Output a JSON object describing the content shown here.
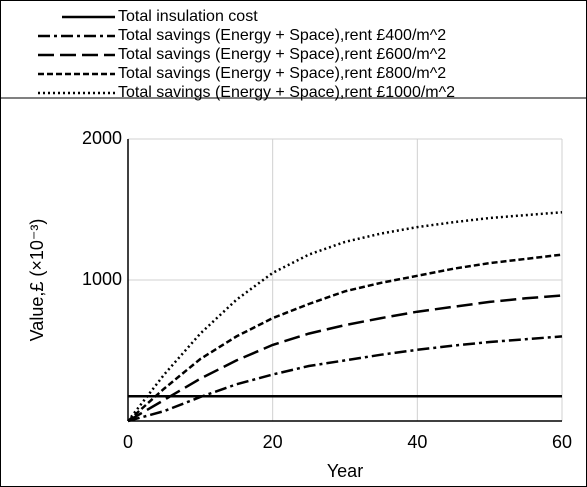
{
  "chart_data": {
    "type": "line",
    "x": [
      0,
      5,
      10,
      15,
      20,
      25,
      30,
      35,
      40,
      45,
      50,
      55,
      60
    ],
    "series": [
      {
        "name": "Total insulation cost",
        "color": "#000000",
        "dash": "none",
        "values": [
          175,
          175,
          175,
          175,
          175,
          175,
          175,
          175,
          175,
          175,
          175,
          175,
          175
        ]
      },
      {
        "name": "Total savings (Energy + Space),rent £400/m^2",
        "color": "#000000",
        "dash": "12,4,3,4",
        "values": [
          0,
          70,
          170,
          260,
          330,
          390,
          430,
          470,
          505,
          535,
          560,
          580,
          600
        ]
      },
      {
        "name": "Total savings (Energy + Space),rent £600/m^2",
        "color": "#000000",
        "dash": "16,6",
        "values": [
          0,
          150,
          300,
          430,
          540,
          620,
          680,
          730,
          775,
          810,
          845,
          870,
          890
        ]
      },
      {
        "name": "Total savings (Energy + Space),rent £800/m^2",
        "color": "#000000",
        "dash": "6,3",
        "values": [
          0,
          230,
          440,
          600,
          730,
          830,
          920,
          980,
          1030,
          1080,
          1120,
          1150,
          1180
        ]
      },
      {
        "name": "Total savings (Energy + Space),rent £1000/m^2",
        "color": "#000000",
        "dash": "2,3",
        "values": [
          0,
          330,
          620,
          860,
          1050,
          1180,
          1270,
          1330,
          1375,
          1410,
          1440,
          1460,
          1480
        ]
      }
    ],
    "x_label": "Year",
    "y_label": "Value,£ (×10⁻³)",
    "xlim": [
      0,
      60
    ],
    "xticks": [
      0,
      20,
      40,
      60
    ],
    "ylim": [
      0,
      2000
    ],
    "yticks": [
      1000,
      2000
    ],
    "grid": true,
    "legend": "top"
  }
}
